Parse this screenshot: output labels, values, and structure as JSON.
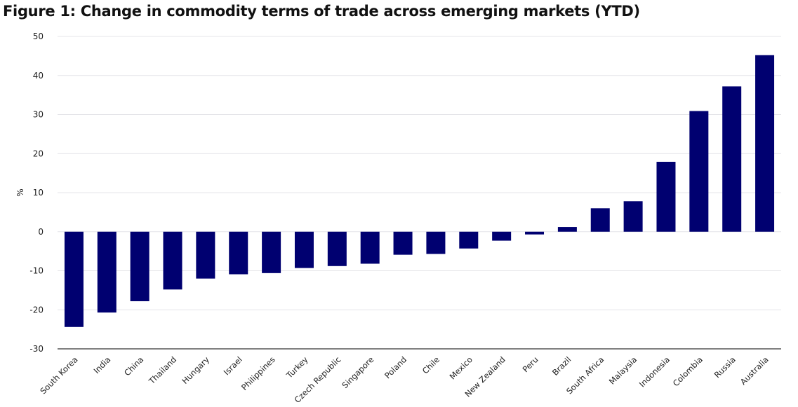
{
  "chart_data": {
    "type": "bar",
    "title": "Figure 1: Change in commodity terms of trade across emerging markets (YTD)",
    "xlabel": "",
    "ylabel": "%",
    "ylim": [
      -30,
      50
    ],
    "yticks": [
      -30,
      -20,
      -10,
      0,
      10,
      20,
      30,
      40,
      50
    ],
    "grid": true,
    "bar_color": "#000070",
    "categories": [
      "South Korea",
      "India",
      "China",
      "Thailand",
      "Hungary",
      "Israel",
      "Philippines",
      "Turkey",
      "Czech Republic",
      "Singapore",
      "Poland",
      "Chile",
      "Mexico",
      "New Zealand",
      "Peru",
      "Brazil",
      "South Africa",
      "Malaysia",
      "Indonesia",
      "Colombia",
      "Russia",
      "Australia"
    ],
    "values": [
      -24.4,
      -20.7,
      -17.8,
      -14.8,
      -12.0,
      -10.9,
      -10.6,
      -9.3,
      -8.8,
      -8.2,
      -5.9,
      -5.7,
      -4.3,
      -2.3,
      -0.7,
      1.2,
      6.0,
      7.8,
      17.9,
      30.9,
      37.2,
      45.2
    ]
  }
}
